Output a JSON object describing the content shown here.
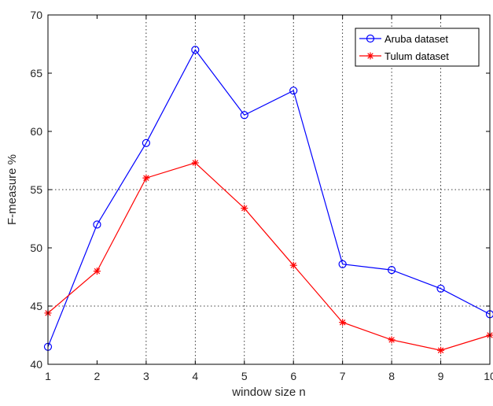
{
  "chart_data": {
    "type": "line",
    "xlabel": "window size n",
    "ylabel": "F-measure %",
    "xlim": [
      1,
      10
    ],
    "ylim": [
      40,
      70
    ],
    "xticks": [
      "1",
      "2",
      "3",
      "4",
      "5",
      "6",
      "7",
      "8",
      "9",
      "10"
    ],
    "yticks": [
      "40",
      "45",
      "50",
      "55",
      "60",
      "65",
      "70"
    ],
    "grid": "dotted at x = 3, 4, 5, 6, 7, 8, 9 and y = 45, 55",
    "legend_position": "top-right",
    "x": [
      1,
      2,
      3,
      4,
      5,
      6,
      7,
      8,
      9,
      10
    ],
    "series": [
      {
        "name": "Aruba dataset",
        "color": "#0000ff",
        "marker": "circle",
        "values": [
          41.5,
          52.0,
          59.0,
          67.0,
          61.4,
          63.5,
          48.6,
          48.1,
          46.5,
          44.3
        ]
      },
      {
        "name": "Tulum dataset",
        "color": "#ff0000",
        "marker": "asterisk",
        "values": [
          44.4,
          48.0,
          56.0,
          57.3,
          53.4,
          48.5,
          43.6,
          42.1,
          41.2,
          42.5
        ]
      }
    ]
  }
}
